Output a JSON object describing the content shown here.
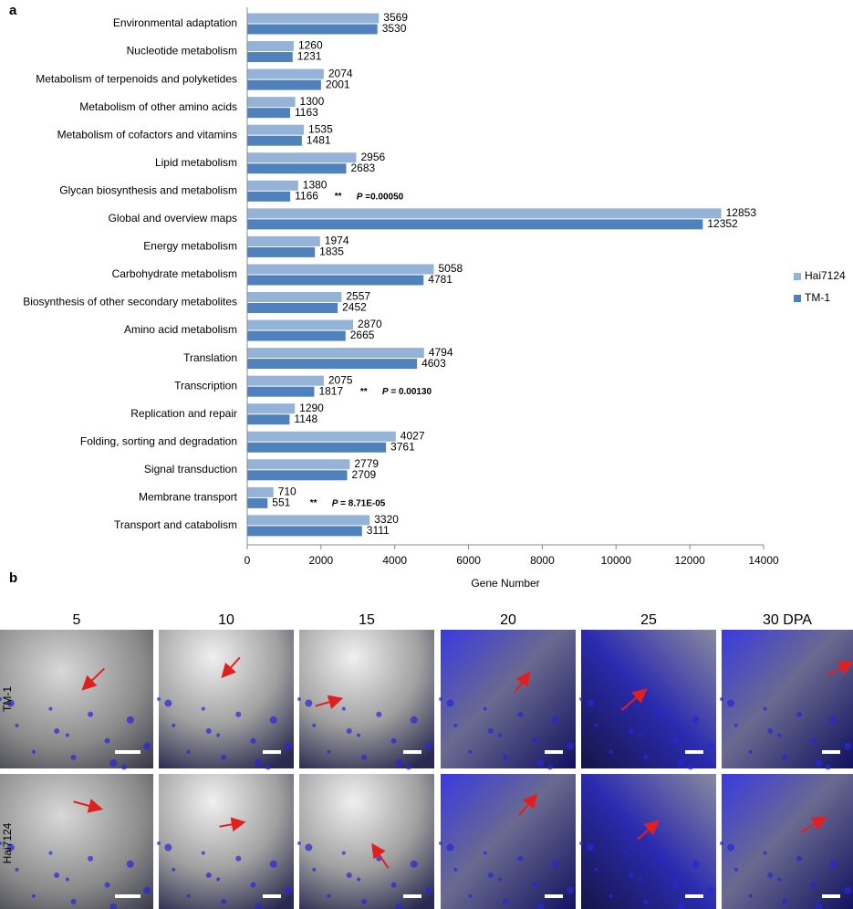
{
  "panel_labels": {
    "a": "a",
    "b": "b"
  },
  "chart_data": {
    "type": "hbar",
    "x_label": "Gene Number",
    "categories": [
      "Environmental adaptation",
      "Nucleotide metabolism",
      "Metabolism of terpenoids and polyketides",
      "Metabolism of other amino acids",
      "Metabolism of cofactors and vitamins",
      "Lipid metabolism",
      "Glycan biosynthesis and metabolism",
      "Global and overview maps",
      "Energy metabolism",
      "Carbohydrate metabolism",
      "Biosynthesis of other secondary metabolites",
      "Amino acid metabolism",
      "Translation",
      "Transcription",
      "Replication and repair",
      "Folding, sorting and degradation",
      "Signal transduction",
      "Membrane transport",
      "Transport and catabolism"
    ],
    "category_colors": [
      "#ef8a1e",
      "#3b3bea",
      "#3b3bea",
      "#3b3bea",
      "#3b3bea",
      "#3b3bea",
      "#3b3bea",
      "#3b3bea",
      "#3b3bea",
      "#3b3bea",
      "#3b3bea",
      "#3b3bea",
      "#e8302e",
      "#e8302e",
      "#e8302e",
      "#e8302e",
      "#000000",
      "#000000",
      "#cc3a36"
    ],
    "series": [
      {
        "name": "Hai7124",
        "color": "#95b3d7",
        "values": [
          3569,
          1260,
          2074,
          1300,
          1535,
          2956,
          1380,
          12853,
          1974,
          5058,
          2557,
          2870,
          4794,
          2075,
          1290,
          4027,
          2779,
          710,
          3320
        ]
      },
      {
        "name": "TM-1",
        "color": "#4f81bd",
        "values": [
          3530,
          1231,
          2001,
          1163,
          1481,
          2683,
          1166,
          12352,
          1835,
          4781,
          2452,
          2665,
          4603,
          1817,
          1148,
          3761,
          2709,
          551,
          3111
        ]
      }
    ],
    "xlim": [
      0,
      14000
    ],
    "xticks": [
      0,
      2000,
      4000,
      6000,
      8000,
      10000,
      12000,
      14000
    ],
    "legend": "right",
    "annotations": [
      {
        "category": "Glycan biosynthesis and metabolism",
        "stars": "**",
        "p": "P",
        "p_value": " =0.00050"
      },
      {
        "category": "Transcription",
        "stars": "**",
        "p": "P",
        "p_value": " = 0.00130"
      },
      {
        "category": "Membrane transport",
        "stars": "**",
        "p": "P",
        "p_value": " = 8.71E-05"
      }
    ]
  },
  "image_panel": {
    "columns": [
      "5",
      "10",
      "15",
      "20",
      "25",
      "30 DPA"
    ],
    "rows": [
      "TM-1",
      "Hai7124"
    ]
  }
}
